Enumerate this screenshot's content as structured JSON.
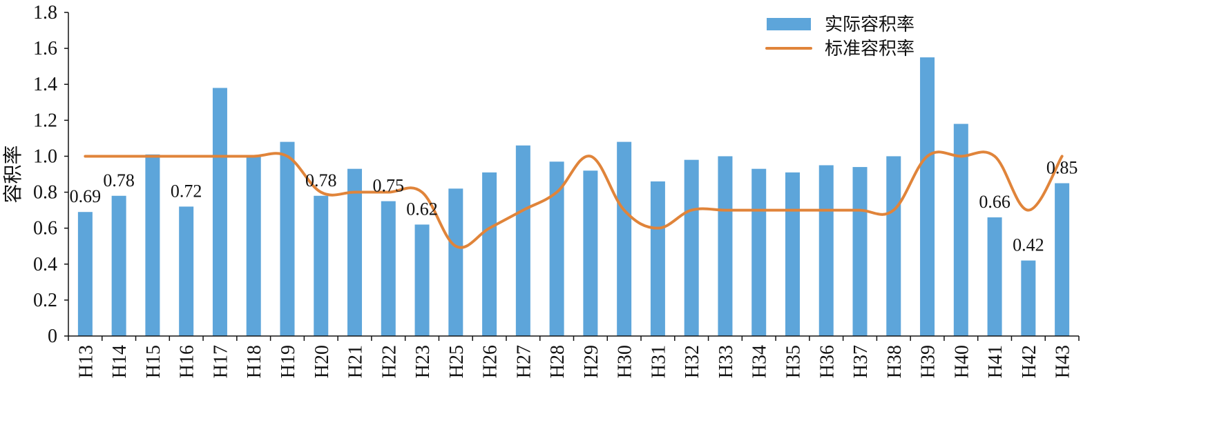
{
  "chart_data": {
    "type": "bar",
    "xlabel": "",
    "ylabel": "容积率",
    "ylim": [
      0,
      1.8
    ],
    "yticks": [
      "0",
      "0.2",
      "0.4",
      "0.6",
      "0.8",
      "1.0",
      "1.2",
      "1.4",
      "1.6",
      "1.8"
    ],
    "grid": false,
    "legend_position": "top-center",
    "categories": [
      "H13",
      "H14",
      "H15",
      "H16",
      "H17",
      "H18",
      "H19",
      "H20",
      "H21",
      "H22",
      "H23",
      "H25",
      "H26",
      "H27",
      "H28",
      "H29",
      "H30",
      "H31",
      "H32",
      "H33",
      "H34",
      "H35",
      "H36",
      "H37",
      "H38",
      "H39",
      "H40",
      "H41",
      "H42",
      "H43"
    ],
    "series": [
      {
        "name": "实际容积率",
        "type": "bar",
        "color": "#5DA5DA",
        "values": [
          0.69,
          0.78,
          1.01,
          0.72,
          1.38,
          1.0,
          1.08,
          0.78,
          0.93,
          0.75,
          0.62,
          0.82,
          0.91,
          1.06,
          0.97,
          0.92,
          1.08,
          0.86,
          0.98,
          1.0,
          0.93,
          0.91,
          0.95,
          0.94,
          1.0,
          1.55,
          1.18,
          0.66,
          0.42,
          0.85
        ]
      },
      {
        "name": "标准容积率",
        "type": "line",
        "color": "#E0843A",
        "values": [
          1.0,
          1.0,
          1.0,
          1.0,
          1.0,
          1.0,
          1.0,
          0.8,
          0.8,
          0.8,
          0.8,
          0.5,
          0.6,
          0.7,
          0.8,
          1.0,
          0.7,
          0.6,
          0.7,
          0.7,
          0.7,
          0.7,
          0.7,
          0.7,
          0.7,
          1.0,
          1.0,
          1.0,
          0.7,
          1.0
        ]
      }
    ],
    "data_labels": [
      {
        "category": "H13",
        "text": "0.69"
      },
      {
        "category": "H14",
        "text": "0.78"
      },
      {
        "category": "H16",
        "text": "0.72"
      },
      {
        "category": "H20",
        "text": "0.78"
      },
      {
        "category": "H22",
        "text": "0.75"
      },
      {
        "category": "H23",
        "text": "0.62"
      },
      {
        "category": "H41",
        "text": "0.66"
      },
      {
        "category": "H42",
        "text": "0.42"
      },
      {
        "category": "H43",
        "text": "0.85"
      }
    ]
  }
}
